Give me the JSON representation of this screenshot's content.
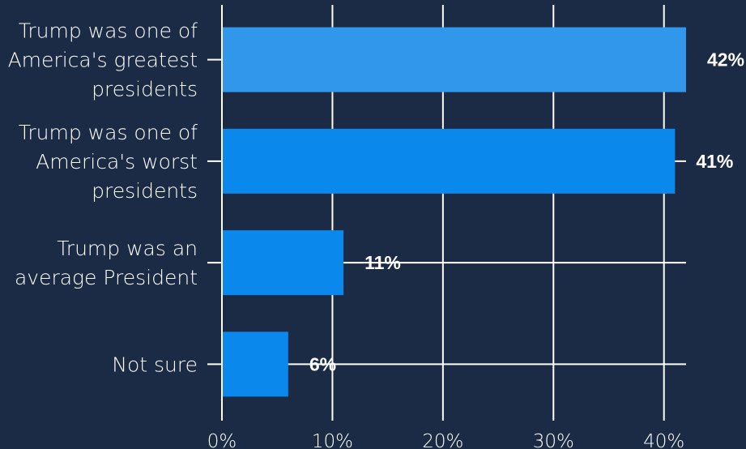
{
  "chart_data": {
    "type": "bar",
    "orientation": "horizontal",
    "title": "",
    "xlabel": "",
    "ylabel": "",
    "categories": [
      "Trump was one of America's greatest presidents",
      "Trump was one of America's worst presidents",
      "Trump was an average President",
      "Not sure"
    ],
    "category_lines": [
      [
        "Trump was one of",
        "America's greatest",
        "presidents"
      ],
      [
        "Trump was one of",
        "America's worst",
        "presidents"
      ],
      [
        "Trump was an",
        "average President"
      ],
      [
        "Not sure"
      ]
    ],
    "values": [
      42,
      41,
      11,
      6
    ],
    "data_labels": [
      "42%",
      "41%",
      "11%",
      "6%"
    ],
    "bar_colors": [
      "#3097ea",
      "#0a88ec",
      "#0a88ec",
      "#0a88ec"
    ],
    "xlim": [
      0,
      42
    ],
    "x_ticks": [
      0,
      10,
      20,
      30,
      40
    ],
    "x_tick_labels": [
      "0%",
      "10%",
      "20%",
      "30%",
      "40%"
    ],
    "grid": true,
    "legend": "none"
  },
  "colors": {
    "background": "#1c2b45",
    "text": "#ffffff",
    "grid": "#ffffff"
  }
}
